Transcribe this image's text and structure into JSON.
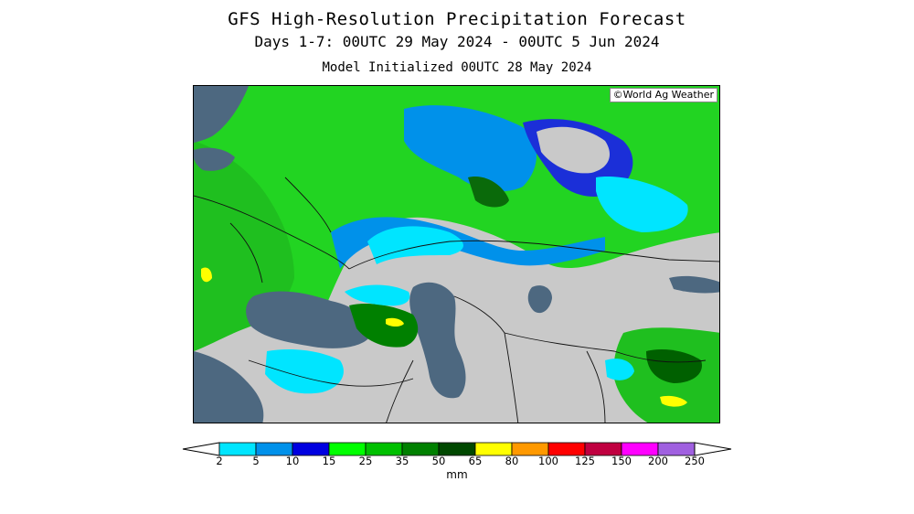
{
  "header": {
    "title": "GFS High-Resolution Precipitation Forecast",
    "subtitle": "Days 1-7: 00UTC 29 May 2024 - 00UTC 5 Jun 2024",
    "init_line": "Model Initialized 00UTC 28 May 2024"
  },
  "map": {
    "credit": "©World Ag Weather",
    "colors": {
      "water": "#4d6880",
      "land_dry": "#c9c9c9"
    }
  },
  "legend": {
    "unit": "mm",
    "under_color": "#ffffff",
    "over_color": "#ffffff",
    "bins": [
      {
        "label": "2",
        "color": "#00e5ff"
      },
      {
        "label": "5",
        "color": "#0091ea"
      },
      {
        "label": "10",
        "color": "#0000e0"
      },
      {
        "label": "15",
        "color": "#00ff00"
      },
      {
        "label": "25",
        "color": "#00c000"
      },
      {
        "label": "35",
        "color": "#008000"
      },
      {
        "label": "50",
        "color": "#004800"
      },
      {
        "label": "65",
        "color": "#ffff00"
      },
      {
        "label": "80",
        "color": "#ff9900"
      },
      {
        "label": "100",
        "color": "#ff0000"
      },
      {
        "label": "125",
        "color": "#c00040"
      },
      {
        "label": "150",
        "color": "#ff00ff"
      },
      {
        "label": "200",
        "color": "#a060e0"
      }
    ],
    "last_label": "250"
  }
}
